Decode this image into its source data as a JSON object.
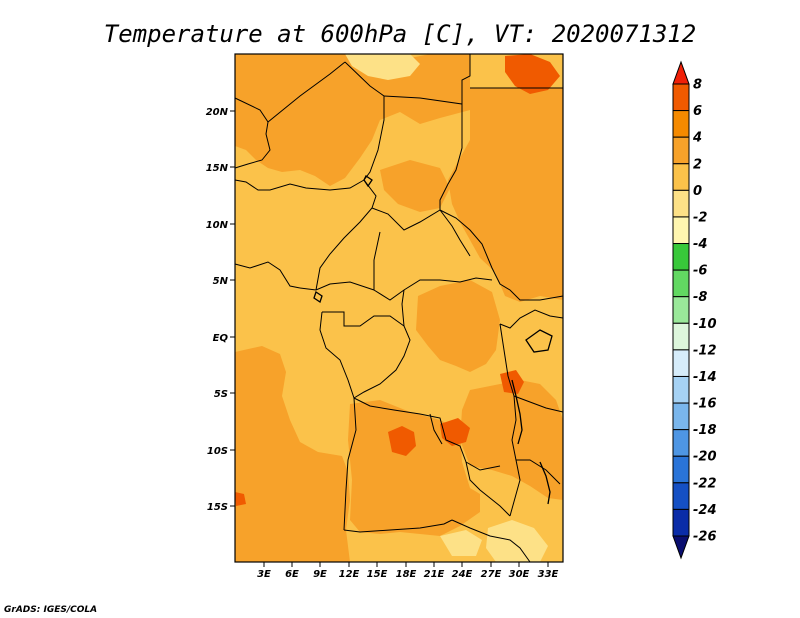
{
  "title": "Temperature at 600hPa [C], VT: 2020071312",
  "credit": "GrADS: IGES/COLA",
  "map": {
    "lon_range": [
      0,
      34.5
    ],
    "lat_range": [
      -20,
      25
    ],
    "lon_ticks": [
      "3E",
      "6E",
      "9E",
      "12E",
      "15E",
      "18E",
      "21E",
      "24E",
      "27E",
      "30E",
      "33E"
    ],
    "lat_ticks": [
      "20N",
      "15N",
      "10N",
      "5N",
      "EQ",
      "5S",
      "10S",
      "15S"
    ]
  },
  "colorbar": {
    "labels": [
      "8",
      "6",
      "4",
      "2",
      "0",
      "-2",
      "-4",
      "-6",
      "-8",
      "-10",
      "-12",
      "-14",
      "-16",
      "-18",
      "-20",
      "-22",
      "-24",
      "-26"
    ],
    "colors": [
      "#f02008",
      "#f05a00",
      "#f58a00",
      "#f7a22a",
      "#fbc24a",
      "#fde187",
      "#fff6b0",
      "#38c83a",
      "#62d862",
      "#9ae89a",
      "#ddf6dc",
      "#d6ecfa",
      "#a6d2f4",
      "#7ab6ec",
      "#4e96e4",
      "#2a74d8",
      "#1550c4",
      "#0a2ca8",
      "#0a0e70"
    ]
  },
  "chart_data": {
    "type": "heatmap",
    "title": "Temperature at 600hPa [C], VT: 2020071312",
    "variable": "Temperature",
    "level": "600hPa",
    "units": "C",
    "valid_time": "2020071312",
    "x_ticks": [
      "3E",
      "6E",
      "9E",
      "12E",
      "15E",
      "18E",
      "21E",
      "24E",
      "27E",
      "30E",
      "33E"
    ],
    "y_ticks": [
      "20N",
      "15N",
      "10N",
      "5N",
      "EQ",
      "5S",
      "10S",
      "15S"
    ],
    "colorbar_levels": [
      8,
      6,
      4,
      2,
      0,
      -2,
      -4,
      -6,
      -8,
      -10,
      -12,
      -14,
      -16,
      -18,
      -20,
      -22,
      -24,
      -26
    ],
    "dominant_range": [
      0,
      6
    ],
    "grid": false
  }
}
